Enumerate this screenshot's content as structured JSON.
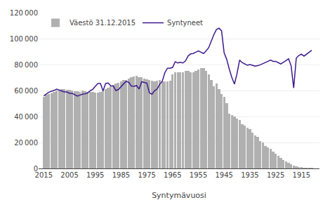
{
  "chart_data": {
    "type": "bar",
    "xlabel": "Syntymävuosi",
    "xlim": [
      2017,
      1908
    ],
    "xticks": [
      2015,
      2005,
      1995,
      1985,
      1975,
      1965,
      1955,
      1945,
      1935,
      1925,
      1915
    ],
    "ylim": [
      0,
      120000
    ],
    "yticks": [
      0,
      {
        "value": 20000,
        "label": "20 000"
      },
      {
        "value": 40000,
        "label": "40 000"
      },
      {
        "value": 60000,
        "label": "60 000"
      },
      {
        "value": 80000,
        "label": "80 000"
      },
      {
        "value": 100000,
        "label": "100 000"
      },
      {
        "value": 120000,
        "label": "120 000"
      }
    ],
    "grid": true,
    "legend": "upper left",
    "series": [
      {
        "name": "Väestö 31.12.2015",
        "type": "bar",
        "color": "#b0b0b0",
        "x": [
          2015,
          2014,
          2013,
          2012,
          2011,
          2010,
          2009,
          2008,
          2007,
          2006,
          2005,
          2004,
          2003,
          2002,
          2001,
          2000,
          1999,
          1998,
          1997,
          1996,
          1995,
          1994,
          1993,
          1992,
          1991,
          1990,
          1989,
          1988,
          1987,
          1986,
          1985,
          1984,
          1983,
          1982,
          1981,
          1980,
          1979,
          1978,
          1977,
          1976,
          1975,
          1974,
          1973,
          1972,
          1971,
          1970,
          1969,
          1968,
          1967,
          1966,
          1965,
          1964,
          1963,
          1962,
          1961,
          1960,
          1959,
          1958,
          1957,
          1956,
          1955,
          1954,
          1953,
          1952,
          1951,
          1950,
          1949,
          1948,
          1947,
          1946,
          1945,
          1944,
          1943,
          1942,
          1941,
          1940,
          1939,
          1938,
          1937,
          1936,
          1935,
          1934,
          1933,
          1932,
          1931,
          1930,
          1929,
          1928,
          1927,
          1926,
          1925,
          1924,
          1923,
          1922,
          1921,
          1920,
          1919,
          1918,
          1917,
          1916,
          1915,
          1914,
          1913,
          1912,
          1911
        ],
        "values": [
          55200,
          57000,
          57500,
          58000,
          59000,
          60200,
          60500,
          61000,
          61000,
          60500,
          60500,
          60200,
          59500,
          59200,
          59000,
          60000,
          59300,
          58800,
          58800,
          58800,
          58200,
          58500,
          59000,
          60200,
          61200,
          62200,
          63200,
          64200,
          65200,
          66000,
          66800,
          68200,
          68300,
          69200,
          70200,
          70800,
          71200,
          70300,
          70200,
          69200,
          68800,
          68200,
          67800,
          67200,
          67800,
          68200,
          66800,
          66800,
          67200,
          67800,
          72200,
          73800,
          74200,
          74200,
          74200,
          75200,
          75200,
          74200,
          73800,
          75200,
          76200,
          77200,
          77200,
          75200,
          72200,
          68200,
          63200,
          65200,
          61200,
          57200,
          55200,
          50200,
          42200,
          41200,
          40200,
          38200,
          37200,
          34200,
          33200,
          31200,
          30200,
          27700,
          25200,
          24200,
          21200,
          20200,
          17200,
          16200,
          15200,
          13200,
          11200,
          9700,
          8200,
          6700,
          5200,
          4200,
          3200,
          2200,
          1700,
          1200,
          700,
          400,
          200,
          100,
          20
        ]
      },
      {
        "name": "Syntyneet",
        "type": "line",
        "color": "#3d1a8e",
        "x": [
          1911,
          1912,
          1913,
          1914,
          1915,
          1916,
          1917,
          1918,
          1919,
          1920,
          1921,
          1922,
          1923,
          1924,
          1925,
          1926,
          1927,
          1928,
          1929,
          1930,
          1931,
          1932,
          1933,
          1934,
          1935,
          1936,
          1937,
          1938,
          1939,
          1940,
          1941,
          1942,
          1943,
          1944,
          1945,
          1946,
          1947,
          1948,
          1949,
          1950,
          1951,
          1952,
          1953,
          1954,
          1955,
          1956,
          1957,
          1958,
          1959,
          1960,
          1961,
          1962,
          1963,
          1964,
          1965,
          1966,
          1967,
          1968,
          1969,
          1970,
          1971,
          1972,
          1973,
          1974,
          1975,
          1976,
          1977,
          1978,
          1979,
          1980,
          1981,
          1982,
          1983,
          1984,
          1985,
          1986,
          1987,
          1988,
          1989,
          1990,
          1991,
          1992,
          1993,
          1994,
          1995,
          1996,
          1997,
          1998,
          1999,
          2000,
          2001,
          2002,
          2003,
          2004,
          2005,
          2006,
          2007,
          2008,
          2009,
          2010,
          2011,
          2012,
          2013,
          2014,
          2015
        ],
        "values": [
          91000,
          89500,
          88000,
          86500,
          88000,
          87000,
          85000,
          62000,
          79000,
          84500,
          83000,
          81500,
          80500,
          81500,
          82500,
          82500,
          83500,
          82500,
          81500,
          80500,
          79800,
          79200,
          78800,
          79500,
          80000,
          79500,
          80500,
          81500,
          83500,
          73000,
          65000,
          70000,
          76500,
          84000,
          89000,
          106000,
          108000,
          107000,
          103000,
          98500,
          93000,
          90500,
          88500,
          89500,
          90500,
          89500,
          88500,
          88200,
          86500,
          82800,
          81200,
          81800,
          81200,
          82200,
          77800,
          77200,
          77200,
          73800,
          67200,
          64800,
          61200,
          59800,
          57200,
          58200,
          65800,
          66200,
          66800,
          61200,
          63800,
          63200,
          63400,
          66300,
          67100,
          65200,
          63000,
          60800,
          60000,
          63500,
          63600,
          65800,
          65400,
          59700,
          65400,
          65400,
          63300,
          60900,
          59800,
          58100,
          57500,
          57200,
          56400,
          55700,
          56800,
          57800,
          57900,
          58900,
          58900,
          59700,
          60600,
          61100,
          60100,
          59600,
          58700,
          57400,
          55900
        ]
      }
    ]
  }
}
